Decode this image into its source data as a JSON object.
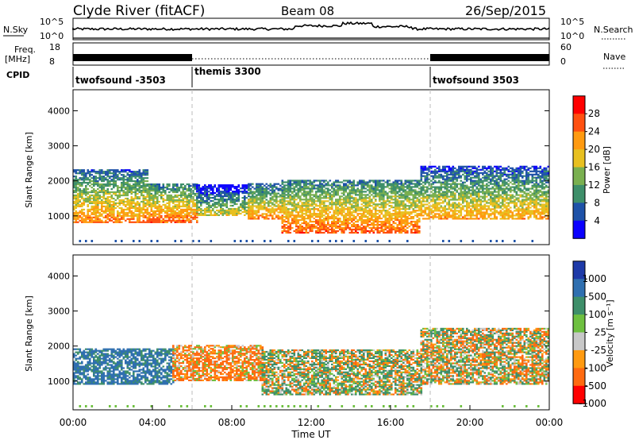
{
  "header": {
    "station": "Clyde River (fitACF)",
    "beam": "Beam 08",
    "date": "26/Sep/2015"
  },
  "upper_panels": {
    "nsky_label": "N.Sky",
    "nsky_ticks": [
      "10^5",
      "10^0"
    ],
    "nsearch_label": "N.Search",
    "nsearch_ticks": [
      "10^5",
      "10^0"
    ],
    "freq_label": "Freq.",
    "freq_unit": "[MHz]",
    "freq_ticks": [
      "18",
      "8"
    ],
    "nave_label": "Nave",
    "nave_ticks": [
      "60",
      "0"
    ],
    "cpid_label": "CPID"
  },
  "cpid_segments": [
    {
      "label": "twofsound -3503",
      "start": 0,
      "end": 6
    },
    {
      "label": "themis 3300",
      "start": 6,
      "end": 18
    },
    {
      "label": "twofsound 3503",
      "start": 18,
      "end": 24
    }
  ],
  "x_axis": {
    "label": "Time UT",
    "ticks": [
      "00:00",
      "04:00",
      "08:00",
      "12:00",
      "16:00",
      "20:00",
      "00:00"
    ],
    "range_hours": [
      0,
      24
    ]
  },
  "power_panel": {
    "ylabel": "Slant Range [km]",
    "yticks": [
      "4000",
      "3000",
      "2000",
      "1000"
    ],
    "colorbar_label": "Power [dB]",
    "colorbar_ticks": [
      "28",
      "24",
      "20",
      "16",
      "12",
      "8",
      "4"
    ],
    "colors": [
      "#0a00ff",
      "#1e52a8",
      "#3e8f6a",
      "#7ab050",
      "#e8c020",
      "#ff9a10",
      "#ff5010",
      "#ff0000"
    ]
  },
  "velocity_panel": {
    "ylabel": "Slant Range [km]",
    "yticks": [
      "4000",
      "3000",
      "2000",
      "1000"
    ],
    "colorbar_label": "Velocity [m s⁻¹]",
    "colorbar_ticks": [
      "1000",
      "500",
      "100",
      "25",
      "-25",
      "-100",
      "-500",
      "-1000"
    ],
    "colors": [
      "#1e3aa8",
      "#2f6fb0",
      "#3e8f6a",
      "#6ec040",
      "#c8c8c8",
      "#ff9a10",
      "#ff6a10",
      "#ff0000"
    ]
  },
  "chart_data": {
    "type": "heatmap",
    "title": "Clyde River (fitACF)",
    "subtitle": "Beam 08",
    "xlabel": "Time UT",
    "ylabel": "Slant Range [km]",
    "xlim_hours": [
      0,
      24
    ],
    "ylim_km": [
      180,
      4600
    ],
    "grid": false,
    "echo_bands_power": [
      {
        "start_h": 0.0,
        "end_h": 3.8,
        "min_km": 800,
        "max_km": 2300,
        "peak_db": 26
      },
      {
        "start_h": 3.8,
        "end_h": 6.2,
        "min_km": 800,
        "max_km": 1900,
        "peak_db": 28
      },
      {
        "start_h": 6.2,
        "end_h": 8.8,
        "min_km": 1000,
        "max_km": 1900,
        "peak_db": 20
      },
      {
        "start_h": 8.8,
        "end_h": 10.5,
        "min_km": 900,
        "max_km": 1900,
        "peak_db": 26
      },
      {
        "start_h": 10.5,
        "end_h": 17.5,
        "min_km": 500,
        "max_km": 2000,
        "peak_db": 28
      },
      {
        "start_h": 17.5,
        "end_h": 24.0,
        "min_km": 900,
        "max_km": 2400,
        "peak_db": 24
      }
    ],
    "echo_bands_velocity": [
      {
        "start_h": 0.0,
        "end_h": 5.0,
        "min_km": 900,
        "max_km": 1900,
        "velocity_ms": 600
      },
      {
        "start_h": 5.0,
        "end_h": 9.5,
        "min_km": 1000,
        "max_km": 2000,
        "velocity_ms": -150
      },
      {
        "start_h": 9.5,
        "end_h": 17.5,
        "min_km": 600,
        "max_km": 1900,
        "velocity_ms": 60
      },
      {
        "start_h": 17.5,
        "end_h": 24.0,
        "min_km": 900,
        "max_km": 2500,
        "velocity_ms": 0
      }
    ]
  }
}
